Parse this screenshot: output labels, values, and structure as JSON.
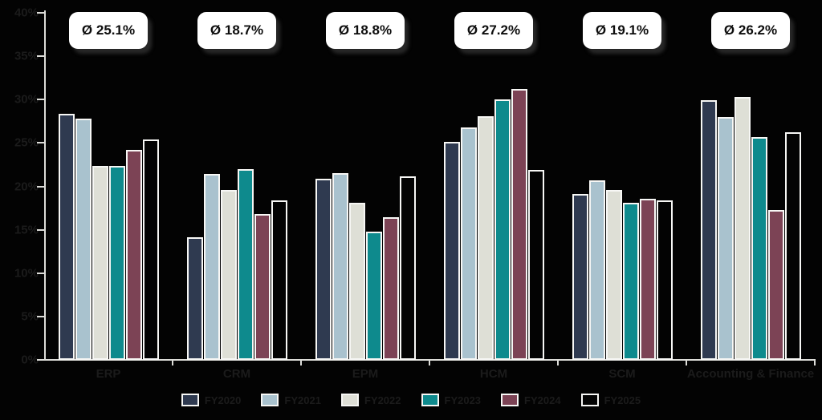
{
  "chart_data": {
    "type": "bar",
    "title": "",
    "xlabel": "",
    "ylabel": "",
    "ylim": [
      0,
      40
    ],
    "grid": false,
    "legend_position": "bottom",
    "y_ticks": [
      "0%",
      "5%",
      "10%",
      "15%",
      "20%",
      "25%",
      "30%",
      "35%",
      "40%"
    ],
    "categories": [
      "ERP",
      "CRM",
      "EPM",
      "HCM",
      "SCM",
      "Accounting & Finance"
    ],
    "series": [
      {
        "name": "FY2020",
        "color": "#2F3A50",
        "values": [
          28.4,
          14.1,
          20.9,
          25.1,
          19.1,
          29.9
        ]
      },
      {
        "name": "FY2021",
        "color": "#A9C2CE",
        "values": [
          27.8,
          21.4,
          21.5,
          26.8,
          20.7,
          28.0
        ]
      },
      {
        "name": "FY2022",
        "color": "#DEDFD6",
        "values": [
          22.4,
          19.6,
          18.1,
          28.1,
          19.6,
          30.3
        ]
      },
      {
        "name": "FY2023",
        "color": "#0E8A8D",
        "values": [
          22.4,
          22.0,
          14.8,
          30.0,
          18.1,
          25.7
        ]
      },
      {
        "name": "FY2024",
        "color": "#7C4355",
        "values": [
          24.2,
          16.8,
          16.4,
          31.2,
          18.6,
          17.3
        ]
      },
      {
        "name": "FY2025",
        "color": "#030303",
        "values": [
          25.4,
          18.4,
          21.2,
          21.9,
          18.4,
          26.2
        ]
      }
    ],
    "group_averages": [
      "Ø 25.1%",
      "Ø 18.7%",
      "Ø 18.8%",
      "Ø 27.2%",
      "Ø 19.1%",
      "Ø 26.2%"
    ]
  },
  "colors": {
    "background": "#030303",
    "axis": "#DCDCD8",
    "bar_stroke": "#F7F7F5",
    "dark_label_text": "#1B1B1B",
    "badge_background": "#FFFFFF",
    "badge_text": "#0D0D0D"
  }
}
